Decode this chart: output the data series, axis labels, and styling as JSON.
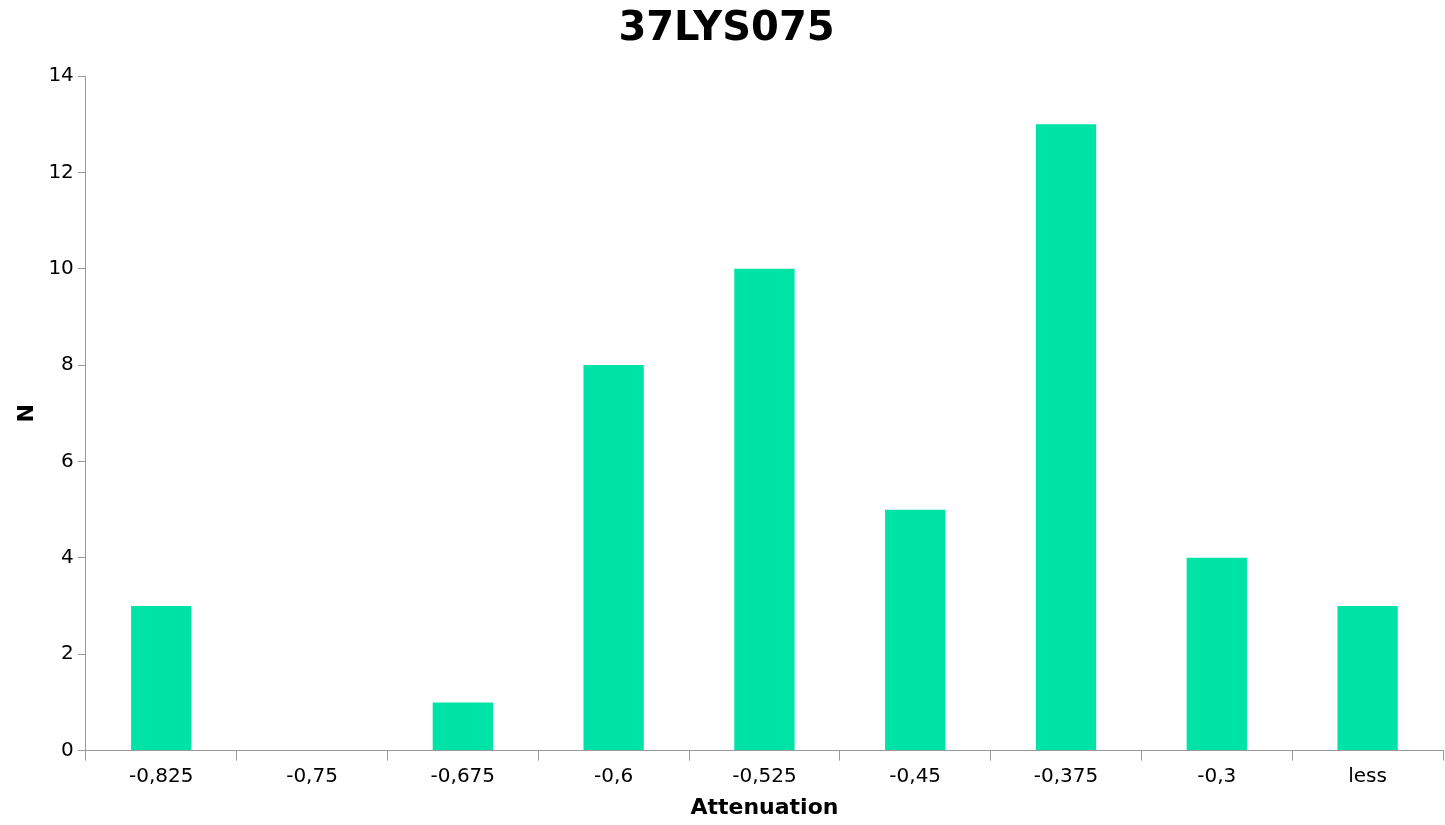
{
  "chart_data": {
    "type": "bar",
    "title": "37LYS075",
    "xlabel": "Attenuation",
    "ylabel": "N",
    "categories": [
      "-0,825",
      "-0,75",
      "-0,675",
      "-0,6",
      "-0,525",
      "-0,45",
      "-0,375",
      "-0,3",
      "less"
    ],
    "values": [
      3,
      0,
      1,
      8,
      10,
      5,
      13,
      4,
      3
    ],
    "color": "#00e3a6",
    "ylim": [
      0,
      14
    ],
    "yticks": [
      0,
      2,
      4,
      6,
      8,
      10,
      12,
      14
    ],
    "grid": false,
    "legend": false
  }
}
